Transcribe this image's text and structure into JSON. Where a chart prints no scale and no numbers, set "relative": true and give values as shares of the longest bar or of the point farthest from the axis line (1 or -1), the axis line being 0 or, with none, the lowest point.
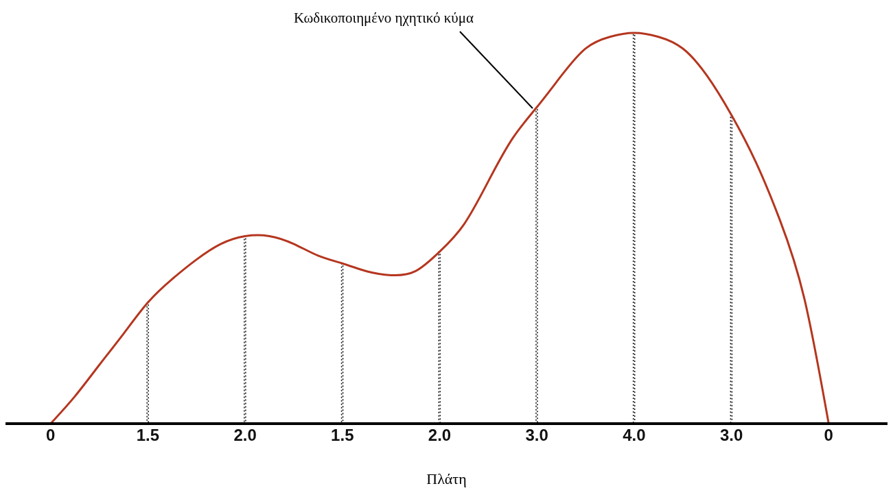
{
  "chart_data": {
    "type": "line",
    "relative": true,
    "xlabel": "Πλάτη",
    "annotations": [
      "Κωδικοποιημένο ηχητικό κύμα"
    ],
    "categories": [
      "0",
      null,
      null,
      null,
      "1.5",
      null,
      null,
      null,
      "2.0",
      null,
      null,
      null,
      "1.5",
      null,
      null,
      null,
      "2.0",
      null,
      null,
      null,
      "3.0",
      null,
      null,
      null,
      "4.0",
      null,
      null,
      null,
      "3.0",
      null,
      null,
      null,
      "0"
    ],
    "series": [
      {
        "color": "#b5361f",
        "values": [
          0,
          0.07,
          0.15,
          0.23,
          0.31,
          0.37,
          0.42,
          0.46,
          0.48,
          0.48,
          0.46,
          0.43,
          0.41,
          0.39,
          0.38,
          0.39,
          0.44,
          0.51,
          0.62,
          0.73,
          0.81,
          0.89,
          0.96,
          0.99,
          1,
          0.99,
          0.96,
          0.89,
          0.79,
          0.67,
          0.52,
          0.32,
          0
        ]
      },
      {
        "type": "bar",
        "color": "#111111",
        "line_style": "dotted",
        "values": [
          null,
          null,
          null,
          null,
          0.31,
          null,
          null,
          null,
          0.48,
          null,
          null,
          null,
          0.41,
          null,
          null,
          null,
          0.44,
          null,
          null,
          null,
          0.81,
          null,
          null,
          null,
          1,
          null,
          null,
          null,
          0.79,
          null,
          null,
          null,
          null
        ]
      }
    ]
  }
}
